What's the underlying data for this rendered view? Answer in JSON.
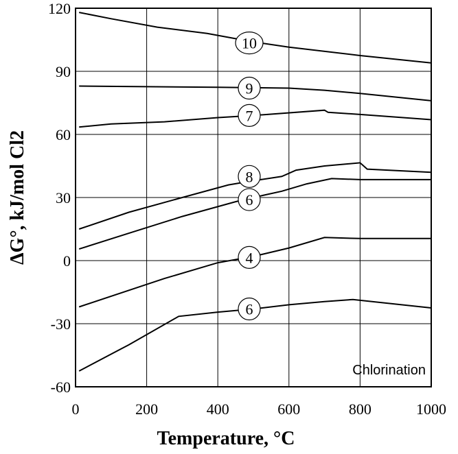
{
  "chart_data": {
    "type": "line",
    "xlabel": "Temperature, °C",
    "ylabel": "ΔG°, kJ/mol Cl2",
    "xlim": [
      0,
      1000
    ],
    "ylim": [
      -60,
      120
    ],
    "x_ticks": [
      0,
      200,
      400,
      600,
      800,
      1000
    ],
    "y_ticks": [
      -60,
      -30,
      0,
      30,
      60,
      90,
      120
    ],
    "grid": true,
    "annotation": "Chlorination",
    "series": [
      {
        "name": "10",
        "label_at": [
          500,
          103.5
        ],
        "points": [
          [
            10,
            118
          ],
          [
            100,
            115
          ],
          [
            230,
            111
          ],
          [
            370,
            108
          ],
          [
            500,
            104
          ],
          [
            600,
            101.5
          ],
          [
            800,
            97.5
          ],
          [
            1000,
            94
          ]
        ]
      },
      {
        "name": "9",
        "label_at": [
          500,
          82
        ],
        "points": [
          [
            10,
            83
          ],
          [
            200,
            82.7
          ],
          [
            400,
            82.4
          ],
          [
            500,
            82.2
          ],
          [
            600,
            82
          ],
          [
            700,
            81
          ],
          [
            800,
            79.5
          ],
          [
            1000,
            76
          ]
        ]
      },
      {
        "name": "7",
        "label_at": [
          500,
          69
        ],
        "points": [
          [
            10,
            63.5
          ],
          [
            100,
            65
          ],
          [
            250,
            66
          ],
          [
            400,
            68
          ],
          [
            500,
            69
          ],
          [
            700,
            71.5
          ],
          [
            710,
            70.5
          ],
          [
            800,
            69.5
          ],
          [
            1000,
            67
          ]
        ]
      },
      {
        "name": "8",
        "label_at": [
          500,
          40
        ],
        "points": [
          [
            10,
            15
          ],
          [
            150,
            23
          ],
          [
            300,
            30
          ],
          [
            430,
            36
          ],
          [
            500,
            38
          ],
          [
            580,
            40
          ],
          [
            620,
            43
          ],
          [
            700,
            45
          ],
          [
            800,
            46.5
          ],
          [
            820,
            43.5
          ],
          [
            1000,
            42
          ]
        ]
      },
      {
        "name": "6",
        "label_at": [
          500,
          29
        ],
        "points": [
          [
            10,
            5.5
          ],
          [
            150,
            13
          ],
          [
            300,
            21
          ],
          [
            450,
            28
          ],
          [
            500,
            30
          ],
          [
            580,
            33
          ],
          [
            650,
            36.5
          ],
          [
            720,
            39
          ],
          [
            800,
            38.5
          ],
          [
            1000,
            38.5
          ]
        ]
      },
      {
        "name": "4",
        "label_at": [
          500,
          1.5
        ],
        "points": [
          [
            10,
            -22
          ],
          [
            250,
            -8.5
          ],
          [
            400,
            -1
          ],
          [
            500,
            2
          ],
          [
            600,
            6
          ],
          [
            700,
            11
          ],
          [
            800,
            10.5
          ],
          [
            1000,
            10.5
          ]
        ]
      },
      {
        "name": "6",
        "label_at": [
          500,
          -23
        ],
        "points": [
          [
            10,
            -52.5
          ],
          [
            150,
            -40
          ],
          [
            290,
            -26.5
          ],
          [
            400,
            -24.5
          ],
          [
            500,
            -23
          ],
          [
            600,
            -21
          ],
          [
            700,
            -19.5
          ],
          [
            780,
            -18.5
          ],
          [
            1000,
            -22.5
          ]
        ]
      }
    ]
  }
}
